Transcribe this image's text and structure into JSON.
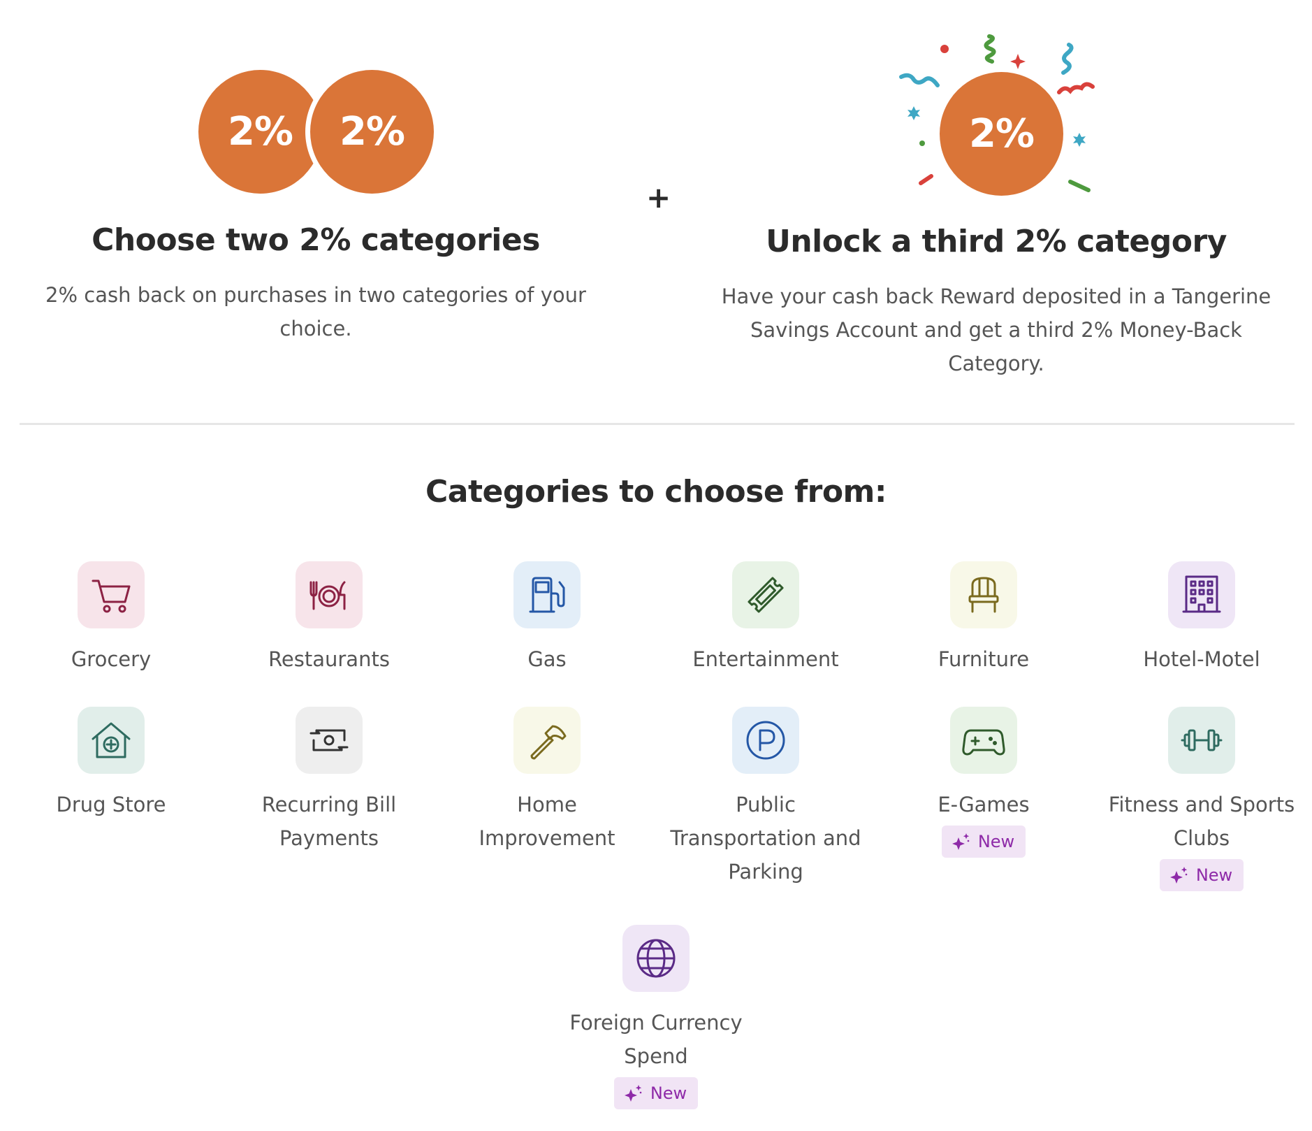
{
  "colors": {
    "accent_orange": "#DA7538",
    "new_badge_bg": "#F1E4F5",
    "new_badge_text": "#8E2AA8"
  },
  "promo": {
    "left": {
      "badges": [
        "2%",
        "2%"
      ],
      "title": "Choose two 2% categories",
      "description": "2% cash back on purchases in two categories of your choice."
    },
    "plus": "+",
    "right": {
      "badge": "2%",
      "title": "Unlock a third 2% category",
      "description": "Have your cash back Reward deposited in a Tangerine Savings Account and get a third 2% Money-Back Category."
    }
  },
  "categories_heading": "Categories to choose from:",
  "categories": [
    {
      "label": "Grocery",
      "icon": "shopping-cart-icon",
      "tile_color": "#F7E4EA",
      "icon_color": "#8C2244",
      "is_new": false
    },
    {
      "label": "Restaurants",
      "icon": "fork-plate-knife-icon",
      "tile_color": "#F7E4EA",
      "icon_color": "#8C2244",
      "is_new": false
    },
    {
      "label": "Gas",
      "icon": "gas-pump-icon",
      "tile_color": "#E3EEF8",
      "icon_color": "#2457A6",
      "is_new": false
    },
    {
      "label": "Entertainment",
      "icon": "ticket-icon",
      "tile_color": "#E8F3E6",
      "icon_color": "#2F5A2B",
      "is_new": false
    },
    {
      "label": "Furniture",
      "icon": "chair-icon",
      "tile_color": "#F8F8E8",
      "icon_color": "#7A6A1E",
      "is_new": false
    },
    {
      "label": "Hotel-Motel",
      "icon": "hotel-building-icon",
      "tile_color": "#EFE6F6",
      "icon_color": "#5A2A86",
      "is_new": false
    },
    {
      "label": "Drug Store",
      "icon": "pharmacy-house-icon",
      "tile_color": "#E1EEEA",
      "icon_color": "#2E6B60",
      "is_new": false
    },
    {
      "label": "Recurring Bill Payments",
      "icon": "recurring-bill-icon",
      "tile_color": "#EEEEEE",
      "icon_color": "#333333",
      "is_new": false
    },
    {
      "label": "Home Improvement",
      "icon": "hammer-icon",
      "tile_color": "#F8F8E8",
      "icon_color": "#7A6A1E",
      "is_new": false
    },
    {
      "label": "Public Transportation and Parking",
      "icon": "parking-icon",
      "tile_color": "#E3EEF8",
      "icon_color": "#2457A6",
      "is_new": false
    },
    {
      "label": "E-Games",
      "icon": "game-controller-icon",
      "tile_color": "#E8F3E6",
      "icon_color": "#2F5A2B",
      "is_new": true,
      "badge": "New"
    },
    {
      "label": "Fitness and Sports Clubs",
      "icon": "dumbbell-icon",
      "tile_color": "#E1EEEA",
      "icon_color": "#2E6B60",
      "is_new": true,
      "badge": "New"
    },
    {
      "label": "Foreign Currency Spend",
      "icon": "globe-icon",
      "tile_color": "#EFE6F6",
      "icon_color": "#5A2A86",
      "is_new": true,
      "badge": "New"
    }
  ]
}
